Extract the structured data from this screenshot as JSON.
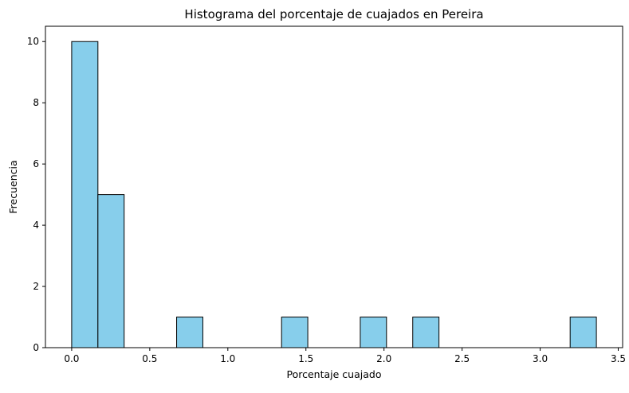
{
  "chart_data": {
    "type": "bar",
    "histogram": true,
    "title": "Histograma del porcentaje de cuajados en Pereira",
    "xlabel": "Porcentaje cuajado",
    "ylabel": "Frecuencia",
    "xlim": [
      -0.168,
      3.528
    ],
    "ylim": [
      0,
      10.5
    ],
    "xticks": [
      0.0,
      0.5,
      1.0,
      1.5,
      2.0,
      2.5,
      3.0,
      3.5
    ],
    "xtick_labels": [
      "0.0",
      "0.5",
      "1.0",
      "1.5",
      "2.0",
      "2.5",
      "3.0",
      "3.5"
    ],
    "yticks": [
      0,
      2,
      4,
      6,
      8,
      10
    ],
    "ytick_labels": [
      "0",
      "2",
      "4",
      "6",
      "8",
      "10"
    ],
    "bins": [
      [
        0.0,
        0.168
      ],
      [
        0.168,
        0.336
      ],
      [
        0.336,
        0.504
      ],
      [
        0.504,
        0.672
      ],
      [
        0.672,
        0.84
      ],
      [
        0.84,
        1.008
      ],
      [
        1.008,
        1.176
      ],
      [
        1.176,
        1.344
      ],
      [
        1.344,
        1.512
      ],
      [
        1.512,
        1.68
      ],
      [
        1.68,
        1.848
      ],
      [
        1.848,
        2.016
      ],
      [
        2.016,
        2.184
      ],
      [
        2.184,
        2.352
      ],
      [
        2.352,
        2.52
      ],
      [
        2.52,
        2.688
      ],
      [
        2.688,
        2.856
      ],
      [
        2.856,
        3.024
      ],
      [
        3.024,
        3.192
      ],
      [
        3.192,
        3.36
      ]
    ],
    "values": [
      10,
      5,
      0,
      0,
      1,
      0,
      0,
      0,
      1,
      0,
      0,
      1,
      0,
      1,
      0,
      0,
      0,
      0,
      0,
      1
    ],
    "grid": false,
    "colors": {
      "bar_fill": "#87CEEB",
      "bar_edge": "#000000",
      "axes": "#000000",
      "background": "#ffffff"
    }
  }
}
